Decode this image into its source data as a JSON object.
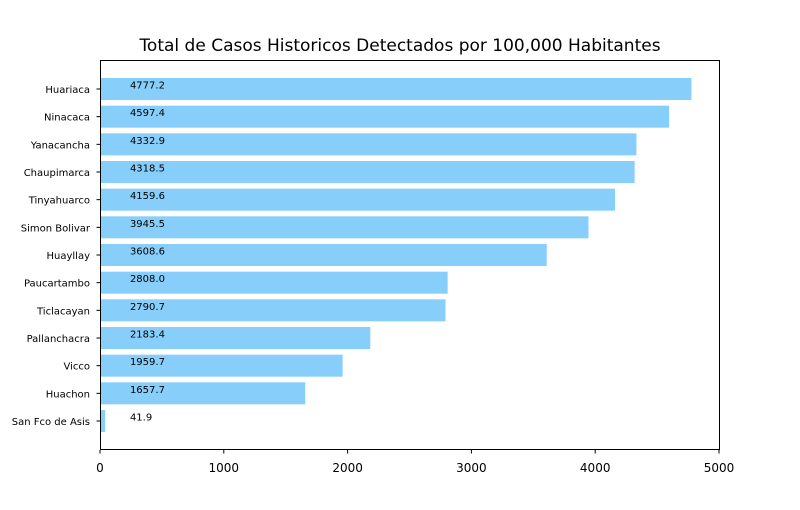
{
  "chart_data": {
    "type": "bar",
    "orientation": "horizontal",
    "title": "Total de Casos Historicos Detectados por 100,000 Habitantes",
    "xlabel": "",
    "ylabel": "",
    "xlim": [
      0,
      5010
    ],
    "xticks": [
      0,
      1000,
      2000,
      3000,
      4000,
      5000
    ],
    "xtick_labels": [
      "0",
      "1000",
      "2000",
      "3000",
      "4000",
      "5000"
    ],
    "grid": false,
    "bar_color": "#87cefa",
    "categories": [
      "Huariaca",
      "Ninacaca",
      "Yanacancha",
      "Chaupimarca",
      "Tinyahuarco",
      "Simon Bolivar",
      "Huayllay",
      "Paucartambo",
      "Ticlacayan",
      "Pallanchacra",
      "Vicco",
      "Huachon",
      "San Fco de Asis"
    ],
    "values": [
      4777.2,
      4597.4,
      4332.9,
      4318.5,
      4159.6,
      3945.5,
      3608.6,
      2808.0,
      2790.7,
      2183.4,
      1959.7,
      1657.7,
      41.9
    ],
    "data_labels": [
      "4777.2",
      "4597.4",
      "4332.9",
      "4318.5",
      "4159.6",
      "3945.5",
      "3608.6",
      "2808.0",
      "2790.7",
      "2183.4",
      "1959.7",
      "1657.7",
      "41.9"
    ],
    "data_label_x": 250
  }
}
